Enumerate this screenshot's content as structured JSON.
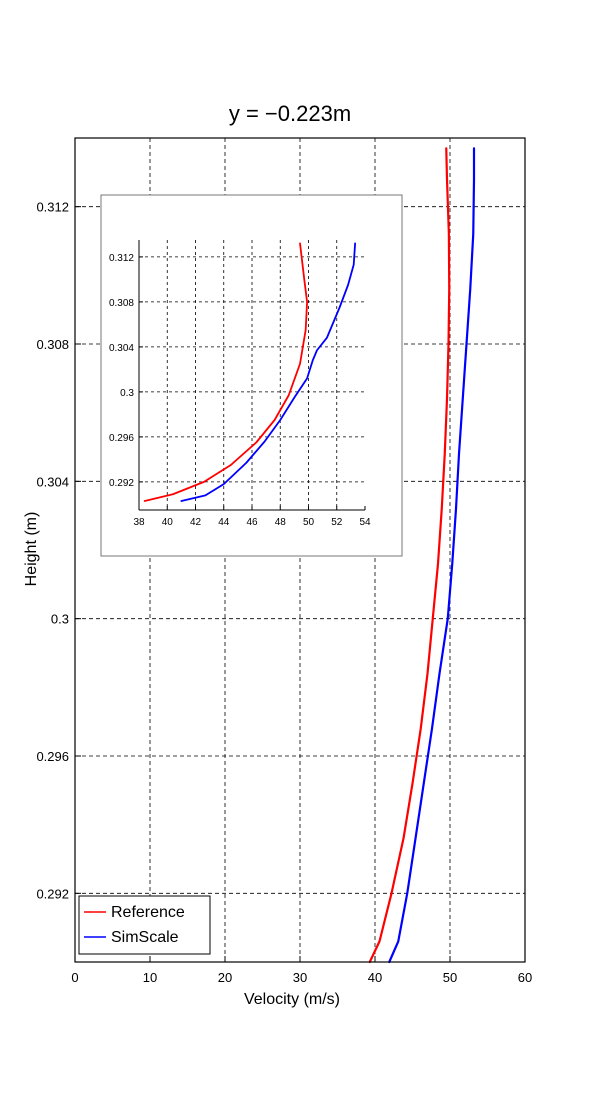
{
  "chart_data": [
    {
      "type": "line",
      "title": "y = −0.223m",
      "xlabel": "Velocity (m/s)",
      "ylabel": "Height (m)",
      "xlim": [
        0,
        60
      ],
      "ylim": [
        0.29,
        0.314
      ],
      "xticks": [
        0,
        10,
        20,
        30,
        40,
        50,
        60
      ],
      "xtick_labels": [
        "0",
        "10",
        "20",
        "30",
        "40",
        "50",
        "60"
      ],
      "yticks": [
        0.292,
        0.296,
        0.3,
        0.304,
        0.308,
        0.312
      ],
      "ytick_labels": [
        "0.292",
        "0.296",
        "0.3",
        "0.304",
        "0.308",
        "0.312"
      ],
      "grid": true,
      "legend": "bottom-left",
      "series": [
        {
          "name": "Reference",
          "color": "#ff0000",
          "points": [
            [
              39.3,
              0.29
            ],
            [
              40.6,
              0.2906
            ],
            [
              42.2,
              0.292
            ],
            [
              43.8,
              0.2936
            ],
            [
              45.0,
              0.2952
            ],
            [
              46.1,
              0.2968
            ],
            [
              47.0,
              0.2984
            ],
            [
              47.7,
              0.3
            ],
            [
              48.4,
              0.3016
            ],
            [
              48.9,
              0.3032
            ],
            [
              49.3,
              0.3048
            ],
            [
              49.6,
              0.3064
            ],
            [
              49.8,
              0.308
            ],
            [
              49.9,
              0.3096
            ],
            [
              49.85,
              0.3112
            ],
            [
              49.6,
              0.3128
            ],
            [
              49.5,
              0.3137
            ]
          ]
        },
        {
          "name": "SimScale",
          "color": "#0000ff",
          "points": [
            [
              41.9,
              0.29
            ],
            [
              43.1,
              0.2906
            ],
            [
              44.3,
              0.292
            ],
            [
              45.4,
              0.2936
            ],
            [
              46.5,
              0.2952
            ],
            [
              47.6,
              0.2968
            ],
            [
              48.6,
              0.2984
            ],
            [
              49.7,
              0.3
            ],
            [
              50.3,
              0.3016
            ],
            [
              50.8,
              0.3032
            ],
            [
              51.2,
              0.3048
            ],
            [
              51.7,
              0.3064
            ],
            [
              52.2,
              0.308
            ],
            [
              52.7,
              0.3096
            ],
            [
              53.1,
              0.3112
            ],
            [
              53.2,
              0.3128
            ],
            [
              53.2,
              0.3137
            ]
          ]
        }
      ]
    },
    {
      "type": "line",
      "title": "",
      "xlabel": "",
      "ylabel": "",
      "xlim": [
        38,
        54
      ],
      "ylim": [
        0.2895,
        0.3135
      ],
      "xticks": [
        38,
        40,
        42,
        44,
        46,
        48,
        50,
        52,
        54
      ],
      "xtick_labels": [
        "38",
        "40",
        "42",
        "44",
        "46",
        "48",
        "50",
        "52",
        "54"
      ],
      "yticks": [
        0.292,
        0.296,
        0.3,
        0.304,
        0.308,
        0.312
      ],
      "ytick_labels": [
        "0.292",
        "0.296",
        "0.3",
        "0.304",
        "0.308",
        "0.312"
      ],
      "grid": true,
      "legend": "none",
      "series": [
        {
          "color": "#ff0000",
          "points": [
            [
              38.4,
              0.2903
            ],
            [
              40.4,
              0.2909
            ],
            [
              42.6,
              0.292
            ],
            [
              44.5,
              0.2935
            ],
            [
              46.3,
              0.2955
            ],
            [
              47.6,
              0.2975
            ],
            [
              48.6,
              0.2997
            ],
            [
              49.4,
              0.3025
            ],
            [
              49.8,
              0.3055
            ],
            [
              49.9,
              0.308
            ],
            [
              49.7,
              0.31
            ],
            [
              49.4,
              0.3132
            ]
          ]
        },
        {
          "color": "#0000ff",
          "points": [
            [
              41.0,
              0.2903
            ],
            [
              42.7,
              0.2908
            ],
            [
              44.0,
              0.2918
            ],
            [
              45.6,
              0.2937
            ],
            [
              46.9,
              0.2956
            ],
            [
              48.0,
              0.2975
            ],
            [
              49.0,
              0.2995
            ],
            [
              49.9,
              0.3012
            ],
            [
              50.3,
              0.3028
            ],
            [
              50.6,
              0.3037
            ],
            [
              51.3,
              0.3048
            ],
            [
              52.2,
              0.3075
            ],
            [
              52.8,
              0.3095
            ],
            [
              53.2,
              0.3113
            ],
            [
              53.3,
              0.3132
            ]
          ]
        }
      ]
    }
  ]
}
